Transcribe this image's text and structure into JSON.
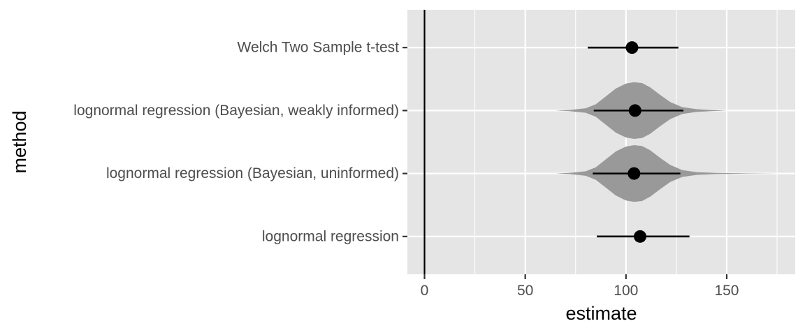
{
  "chart_data": {
    "type": "pointrange-violin",
    "xlabel": "estimate",
    "ylabel": "method",
    "xlim": [
      -8.5,
      184
    ],
    "x_ticks": [
      0,
      50,
      100,
      150
    ],
    "x_tick_labels": [
      "0",
      "50",
      "100",
      "150"
    ],
    "reference_line_x": 0,
    "grid": true,
    "panel_background": "#e5e5e5",
    "grid_color": "#ffffff",
    "categories": [
      "Welch Two Sample t-test",
      "lognormal regression (Bayesian, weakly informed)",
      "lognormal regression (Bayesian, uninformed)",
      "lognormal regression"
    ],
    "estimates": [
      {
        "method": "Welch Two Sample t-test",
        "estimate": 103,
        "lower": 81,
        "upper": 126
      },
      {
        "method": "lognormal regression (Bayesian, weakly informed)",
        "estimate": 104.5,
        "lower": 84,
        "upper": 128.5
      },
      {
        "method": "lognormal regression (Bayesian, uninformed)",
        "estimate": 104,
        "lower": 83.5,
        "upper": 127
      },
      {
        "method": "lognormal regression",
        "estimate": 107,
        "lower": 85.5,
        "upper": 131.5
      }
    ],
    "posterior_violins": [
      {
        "method": "lognormal regression (Bayesian, weakly informed)",
        "color": "#999999",
        "profile": [
          [
            65,
            0.0
          ],
          [
            72,
            0.02
          ],
          [
            80,
            0.08
          ],
          [
            85,
            0.22
          ],
          [
            90,
            0.5
          ],
          [
            95,
            0.78
          ],
          [
            100,
            0.95
          ],
          [
            104,
            1.0
          ],
          [
            108,
            0.97
          ],
          [
            112,
            0.82
          ],
          [
            117,
            0.55
          ],
          [
            122,
            0.3
          ],
          [
            128,
            0.12
          ],
          [
            135,
            0.05
          ],
          [
            142,
            0.02
          ],
          [
            150,
            0.0
          ]
        ]
      },
      {
        "method": "lognormal regression (Bayesian, uninformed)",
        "color": "#999999",
        "profile": [
          [
            65,
            0.0
          ],
          [
            72,
            0.02
          ],
          [
            80,
            0.08
          ],
          [
            85,
            0.22
          ],
          [
            90,
            0.5
          ],
          [
            95,
            0.78
          ],
          [
            100,
            0.95
          ],
          [
            104,
            1.0
          ],
          [
            108,
            0.97
          ],
          [
            112,
            0.82
          ],
          [
            117,
            0.55
          ],
          [
            122,
            0.3
          ],
          [
            128,
            0.12
          ],
          [
            135,
            0.05
          ],
          [
            145,
            0.02
          ],
          [
            160,
            0.006
          ],
          [
            176,
            0.0
          ]
        ]
      }
    ]
  }
}
